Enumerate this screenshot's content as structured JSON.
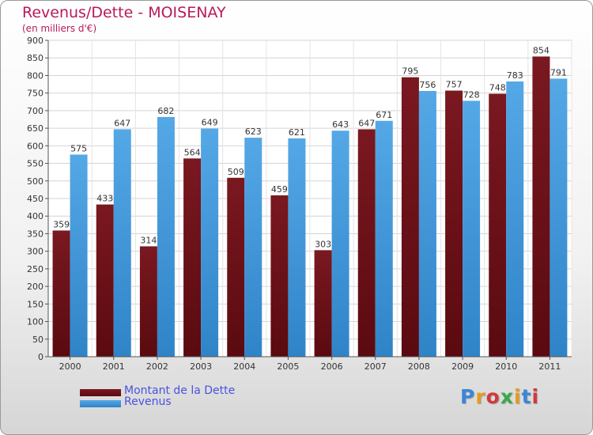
{
  "colors": {
    "dette": "#7a1820",
    "dette_dark": "#5a0a10",
    "revenus": "#55a8e6",
    "revenus_dark": "#2f84c8",
    "title": "#b8195c",
    "legend_text": "#4a52e0"
  },
  "chart_data": {
    "type": "bar",
    "title": "Revenus/Dette - MOISENAY",
    "subtitle": "(en milliers d'€)",
    "categories": [
      "2000",
      "2001",
      "2002",
      "2003",
      "2004",
      "2005",
      "2006",
      "2007",
      "2008",
      "2009",
      "2010",
      "2011"
    ],
    "series": [
      {
        "name": "Montant de la Dette",
        "values": [
          359,
          433,
          314,
          564,
          509,
          459,
          303,
          647,
          795,
          757,
          748,
          854
        ]
      },
      {
        "name": "Revenus",
        "values": [
          575,
          647,
          682,
          649,
          623,
          621,
          643,
          671,
          756,
          728,
          783,
          791
        ]
      }
    ],
    "ylim": [
      0,
      900
    ],
    "yticks": [
      0,
      50,
      100,
      150,
      200,
      250,
      300,
      350,
      400,
      450,
      500,
      550,
      600,
      650,
      700,
      750,
      800,
      850,
      900
    ],
    "grid": true,
    "legend": "bottom-left"
  },
  "logo": {
    "letters": [
      "P",
      "r",
      "o",
      "x",
      "i",
      "t",
      "i"
    ],
    "colors": [
      "#3a86d8",
      "#e89a1a",
      "#d23a3a",
      "#3aa84a",
      "#e89a1a",
      "#3a86d8",
      "#d23a3a"
    ]
  }
}
